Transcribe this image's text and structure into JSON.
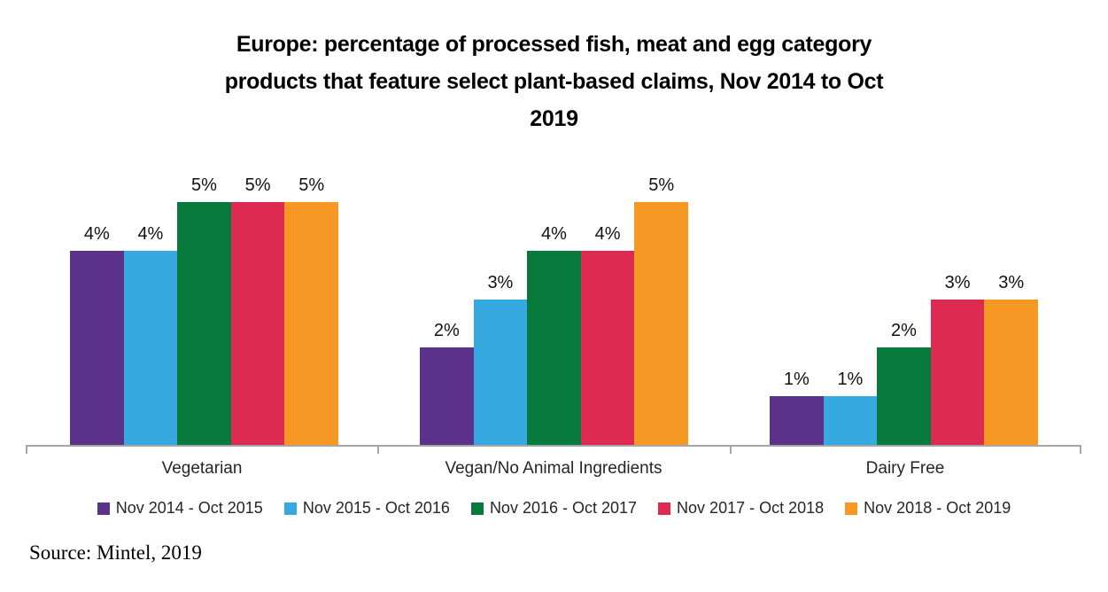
{
  "title": {
    "full": "Europe: percentage of processed fish, meat and egg category products that feature select plant-based claims, Nov 2014 to Oct 2019",
    "lines": [
      "Europe: percentage of processed fish, meat and egg category",
      "products that feature select plant-based claims, Nov 2014 to Oct",
      "2019"
    ]
  },
  "source": "Source: Mintel, 2019",
  "chart_data": {
    "type": "bar",
    "title": "Europe: percentage of processed fish, meat and egg category products that feature select plant-based claims, Nov 2014 to Oct 2019",
    "categories": [
      "Vegetarian",
      "Vegan/No Animal Ingredients",
      "Dairy Free"
    ],
    "series": [
      {
        "name": "Nov 2014 - Oct 2015",
        "color": "#5B3189",
        "values": [
          4,
          2,
          1
        ]
      },
      {
        "name": "Nov 2015 - Oct 2016",
        "color": "#36A9E0",
        "values": [
          4,
          3,
          1
        ]
      },
      {
        "name": "Nov 2016 - Oct 2017",
        "color": "#06793B",
        "values": [
          5,
          4,
          2
        ]
      },
      {
        "name": "Nov 2017 - Oct 2018",
        "color": "#DE2A51",
        "values": [
          5,
          4,
          3
        ]
      },
      {
        "name": "Nov 2018 - Oct 2019",
        "color": "#F79824",
        "values": [
          5,
          5,
          3
        ]
      }
    ],
    "value_suffix": "%",
    "data_labels": true,
    "ylim": [
      0,
      5.5
    ],
    "y_axis_visible": false,
    "grid": false,
    "legend_position": "bottom",
    "axis_color": "#A6A6A6"
  }
}
